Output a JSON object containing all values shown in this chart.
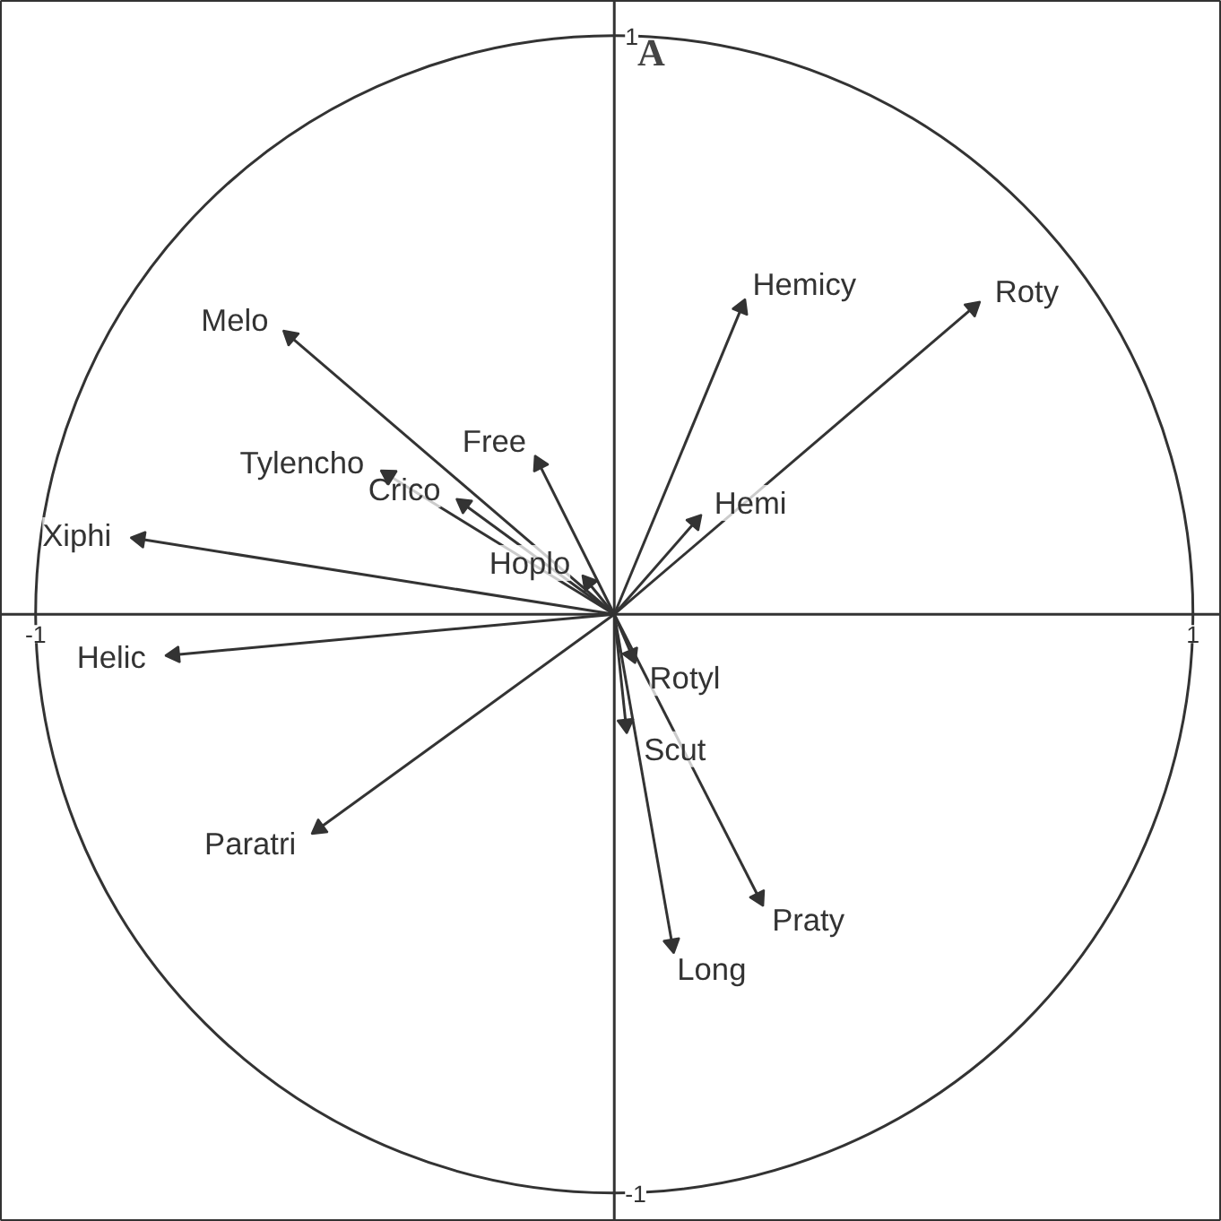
{
  "chart_data": {
    "type": "scatter",
    "title": "A",
    "x": [
      0.62,
      0.22,
      -0.56,
      -0.39,
      -0.26,
      -0.13,
      0.14,
      -0.045,
      -0.82,
      -0.76,
      -0.51,
      0.03,
      0.02,
      0.1,
      0.25
    ],
    "values": [
      0.53,
      0.53,
      0.48,
      0.24,
      0.19,
      0.26,
      0.16,
      0.055,
      0.13,
      -0.07,
      -0.37,
      -0.07,
      -0.19,
      -0.57,
      -0.49
    ],
    "color": "#333333",
    "marker": "triangle",
    "annotations": [
      {
        "text": "Roty",
        "x": 0.62,
        "y": 0.53
      },
      {
        "text": "Hemicy",
        "x": 0.22,
        "y": 0.53
      },
      {
        "text": "Melo",
        "x": -0.56,
        "y": 0.48
      },
      {
        "text": "Tylencho",
        "x": -0.39,
        "y": 0.24
      },
      {
        "text": "Crico",
        "x": -0.26,
        "y": 0.19
      },
      {
        "text": "Free",
        "x": -0.13,
        "y": 0.26
      },
      {
        "text": "Hemi",
        "x": 0.14,
        "y": 0.16
      },
      {
        "text": "Hoplo",
        "x": -0.045,
        "y": 0.055
      },
      {
        "text": "Xiphi",
        "x": -0.82,
        "y": 0.13
      },
      {
        "text": "Helic",
        "x": -0.76,
        "y": -0.07
      },
      {
        "text": "Paratri",
        "x": -0.51,
        "y": -0.37
      },
      {
        "text": "Rotyl",
        "x": 0.03,
        "y": -0.07
      },
      {
        "text": "Scut",
        "x": 0.02,
        "y": -0.19
      },
      {
        "text": "Long",
        "x": 0.1,
        "y": -0.57
      },
      {
        "text": "Praty",
        "x": 0.25,
        "y": -0.49
      }
    ],
    "xlim": [
      -1.06,
      1.05
    ],
    "ylim": [
      -1.05,
      1.06
    ],
    "xticks": [
      -1,
      1
    ],
    "yticks": [
      -1,
      1
    ],
    "grid": false
  }
}
